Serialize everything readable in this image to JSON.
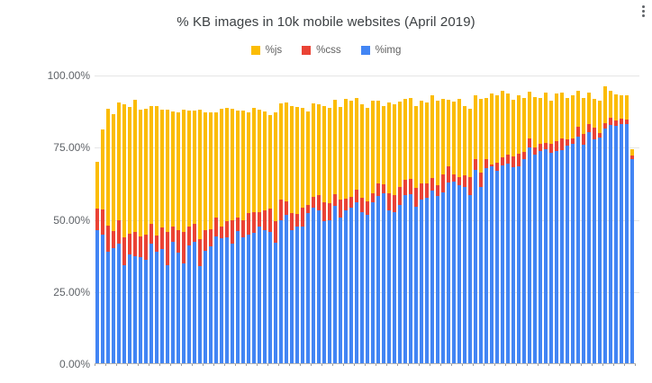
{
  "icons": {
    "more_options_icon": "kebab-vertical-dots"
  },
  "chart_data": {
    "type": "bar",
    "stacked": true,
    "title": "% KB images in 10k mobile websites (April 2019)",
    "legend_position": "top-center",
    "grid": true,
    "ylim": [
      0,
      100
    ],
    "y_ticks": [
      "100.00%",
      "75.00%",
      "50.00%",
      "25.00%",
      "0.00%"
    ],
    "x_axis_labels": "none",
    "num_bars": 100,
    "legend": [
      {
        "label": "%js",
        "color": "#FBBC04"
      },
      {
        "label": "%css",
        "color": "#EA4335"
      },
      {
        "label": "%img",
        "color": "#4285F4"
      }
    ],
    "series": [
      {
        "name": "%img",
        "color": "#4285F4",
        "values": [
          46.5,
          45.0,
          39.0,
          40.2,
          41.8,
          34.4,
          37.9,
          37.3,
          37.1,
          36.0,
          41.8,
          38.9,
          40.0,
          34.2,
          42.3,
          38.6,
          34.9,
          41.1,
          42.3,
          34.1,
          39.2,
          40.7,
          44.4,
          43.6,
          43.9,
          41.8,
          46.0,
          43.9,
          44.9,
          45.5,
          47.6,
          46.3,
          45.7,
          42.1,
          49.9,
          51.8,
          46.5,
          47.6,
          47.6,
          52.3,
          54.1,
          53.4,
          49.7,
          49.9,
          54.7,
          50.9,
          53.4,
          54.1,
          56.2,
          52.6,
          51.8,
          56.0,
          58.3,
          59.2,
          53.4,
          52.6,
          55.2,
          58.6,
          58.9,
          54.4,
          57.1,
          57.6,
          60.2,
          58.3,
          59.4,
          62.8,
          63.2,
          62.1,
          61.3,
          58.6,
          67.4,
          61.5,
          67.8,
          68.4,
          67.1,
          68.8,
          69.5,
          68.1,
          68.6,
          70.9,
          75.2,
          72.6,
          73.7,
          74.4,
          73.1,
          73.7,
          74.1,
          75.8,
          76.2,
          78.9,
          76.0,
          80.4,
          77.9,
          78.6,
          81.5,
          82.8,
          82.5,
          83.2,
          83.2,
          71.0
        ]
      },
      {
        "name": "%css",
        "color": "#EA4335",
        "values": [
          7.4,
          8.5,
          9.0,
          5.8,
          7.9,
          9.5,
          7.4,
          8.5,
          7.3,
          8.9,
          6.8,
          5.8,
          7.4,
          11.6,
          5.3,
          7.7,
          10.8,
          6.5,
          6.3,
          9.3,
          7.3,
          6.0,
          6.3,
          4.0,
          5.8,
          7.9,
          4.7,
          6.0,
          7.4,
          7.1,
          5.0,
          7.1,
          8.2,
          7.6,
          7.2,
          4.7,
          5.8,
          4.4,
          6.5,
          2.9,
          4.0,
          5.2,
          6.5,
          5.9,
          4.2,
          6.2,
          3.9,
          3.8,
          4.2,
          5.0,
          4.7,
          3.2,
          4.5,
          3.1,
          5.8,
          6.0,
          6.3,
          5.3,
          5.3,
          6.7,
          5.4,
          4.9,
          4.4,
          3.8,
          6.3,
          5.8,
          2.5,
          2.8,
          4.0,
          6.3,
          3.5,
          4.8,
          3.1,
          0.8,
          2.6,
          2.8,
          3.1,
          3.9,
          4.2,
          2.5,
          3.1,
          2.6,
          2.5,
          2.4,
          3.1,
          3.6,
          4.2,
          2.1,
          2.1,
          3.2,
          3.7,
          2.8,
          3.9,
          1.4,
          2.1,
          2.5,
          2.1,
          1.7,
          1.4,
          1.2
        ]
      },
      {
        "name": "%js",
        "color": "#FBBC04",
        "values": [
          16.3,
          27.8,
          40.4,
          40.5,
          41.0,
          46.0,
          43.9,
          45.8,
          43.7,
          43.5,
          40.9,
          44.8,
          40.7,
          42.3,
          40.0,
          40.8,
          42.4,
          40.2,
          39.2,
          44.7,
          40.9,
          40.4,
          36.7,
          41.0,
          39.1,
          38.7,
          37.1,
          37.9,
          34.8,
          36.3,
          35.5,
          34.2,
          32.4,
          37.4,
          33.1,
          34.2,
          37.2,
          37.2,
          34.7,
          32.2,
          32.4,
          31.3,
          33.3,
          33.0,
          32.7,
          32.1,
          34.7,
          33.4,
          31.9,
          32.3,
          32.3,
          32.1,
          28.5,
          27.2,
          31.5,
          31.3,
          29.4,
          28.1,
          28.1,
          28.4,
          28.8,
          28.2,
          28.5,
          29.2,
          26.3,
          23.0,
          25.2,
          27.1,
          24.2,
          23.7,
          22.2,
          25.7,
          21.4,
          24.5,
          23.4,
          23.1,
          21.3,
          19.6,
          20.3,
          18.9,
          16.1,
          17.4,
          16.1,
          17.3,
          15.1,
          16.6,
          15.8,
          14.4,
          14.8,
          12.6,
          12.6,
          10.9,
          10.2,
          11.3,
          12.6,
          9.4,
          8.8,
          8.2,
          8.5,
          2.3
        ]
      }
    ],
    "colors": {
      "background": "#ffffff",
      "title_text": "#3c4043",
      "legend_text": "#616161",
      "axis_text": "#5f6368",
      "gridline": "#e6e6e6",
      "baseline": "#b3b3b3"
    }
  }
}
